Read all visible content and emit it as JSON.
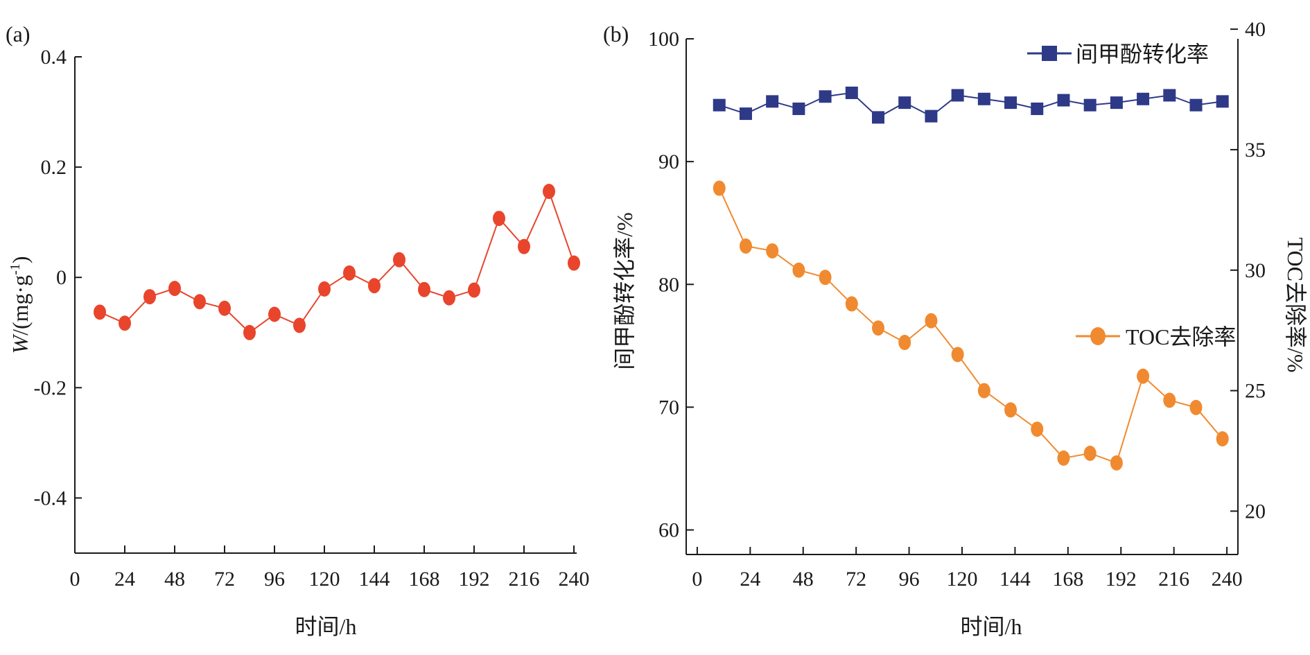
{
  "chart_data": [
    {
      "panel_label": "(a)",
      "type": "line",
      "xlabel": "时间/h",
      "ylabel_italic": "W",
      "ylabel_rest": "/(mg·g",
      "ylabel_sup": "-1",
      "ylabel_close": ")",
      "xlim": [
        0,
        240
      ],
      "ylim": [
        -0.5,
        0.4
      ],
      "x_ticks": [
        0,
        24,
        48,
        72,
        96,
        120,
        144,
        168,
        192,
        216,
        240
      ],
      "x_tick_labels": [
        "0",
        "24",
        "48",
        "72",
        "96",
        "120",
        "144",
        "168",
        "192",
        "216",
        "240"
      ],
      "y_ticks": [
        -0.4,
        -0.2,
        0,
        0.2,
        0.4
      ],
      "y_tick_labels": [
        "-0.4",
        "-0.2",
        "0",
        "0.2",
        "0.4"
      ],
      "color": "#e8452c",
      "series": [
        {
          "x": [
            12,
            24,
            36,
            48,
            60,
            72,
            84,
            96,
            108,
            120,
            132,
            144,
            156,
            168,
            180,
            192,
            204,
            216,
            228,
            240
          ],
          "values": [
            -0.063,
            -0.083,
            -0.035,
            -0.02,
            -0.044,
            -0.056,
            -0.1,
            -0.067,
            -0.087,
            -0.021,
            0.008,
            -0.015,
            0.032,
            -0.022,
            -0.037,
            -0.023,
            0.107,
            0.056,
            0.156,
            0.026
          ]
        }
      ]
    },
    {
      "panel_label": "(b)",
      "type": "line",
      "xlabel": "时间/h",
      "ylabel_left": "间甲酚转化率/%",
      "ylabel_right": "TOC去除率/%",
      "xlim": [
        -5,
        245
      ],
      "ylim_left": [
        58,
        100
      ],
      "ylim_right": [
        18.2,
        39.6
      ],
      "x_ticks": [
        0,
        24,
        48,
        72,
        96,
        120,
        144,
        168,
        192,
        216,
        240
      ],
      "x_tick_labels": [
        "0",
        "24",
        "48",
        "72",
        "96",
        "120",
        "144",
        "168",
        "192",
        "216",
        "240"
      ],
      "y_left_ticks": [
        60,
        70,
        80,
        90,
        100
      ],
      "y_left_tick_labels": [
        "60",
        "70",
        "80",
        "90",
        "100"
      ],
      "y_right_ticks": [
        20,
        25,
        30,
        35,
        40
      ],
      "y_right_tick_labels": [
        "20",
        "25",
        "30",
        "35",
        "40"
      ],
      "series": [
        {
          "name": "间甲酚转化率",
          "axis": "left",
          "marker": "square",
          "color": "#2e3a87",
          "x": [
            10,
            22,
            34,
            46,
            58,
            70,
            82,
            94,
            106,
            118,
            130,
            142,
            154,
            166,
            178,
            190,
            202,
            214,
            226,
            238
          ],
          "values": [
            94.6,
            93.9,
            94.9,
            94.3,
            95.3,
            95.6,
            93.6,
            94.8,
            93.7,
            95.4,
            95.1,
            94.8,
            94.3,
            95.0,
            94.6,
            94.8,
            95.1,
            95.4,
            94.6,
            94.9
          ]
        },
        {
          "name": "TOC去除率",
          "axis": "right",
          "marker": "circle",
          "color": "#f08a30",
          "x": [
            10,
            22,
            34,
            46,
            58,
            70,
            82,
            94,
            106,
            118,
            130,
            142,
            154,
            166,
            178,
            190,
            202,
            214,
            226,
            238
          ],
          "values": [
            33.4,
            31.0,
            30.8,
            30.0,
            29.7,
            28.6,
            27.6,
            27.0,
            27.9,
            26.5,
            25.0,
            24.2,
            23.4,
            22.2,
            22.4,
            22.0,
            25.6,
            24.6,
            24.3,
            23.0
          ]
        }
      ]
    }
  ]
}
